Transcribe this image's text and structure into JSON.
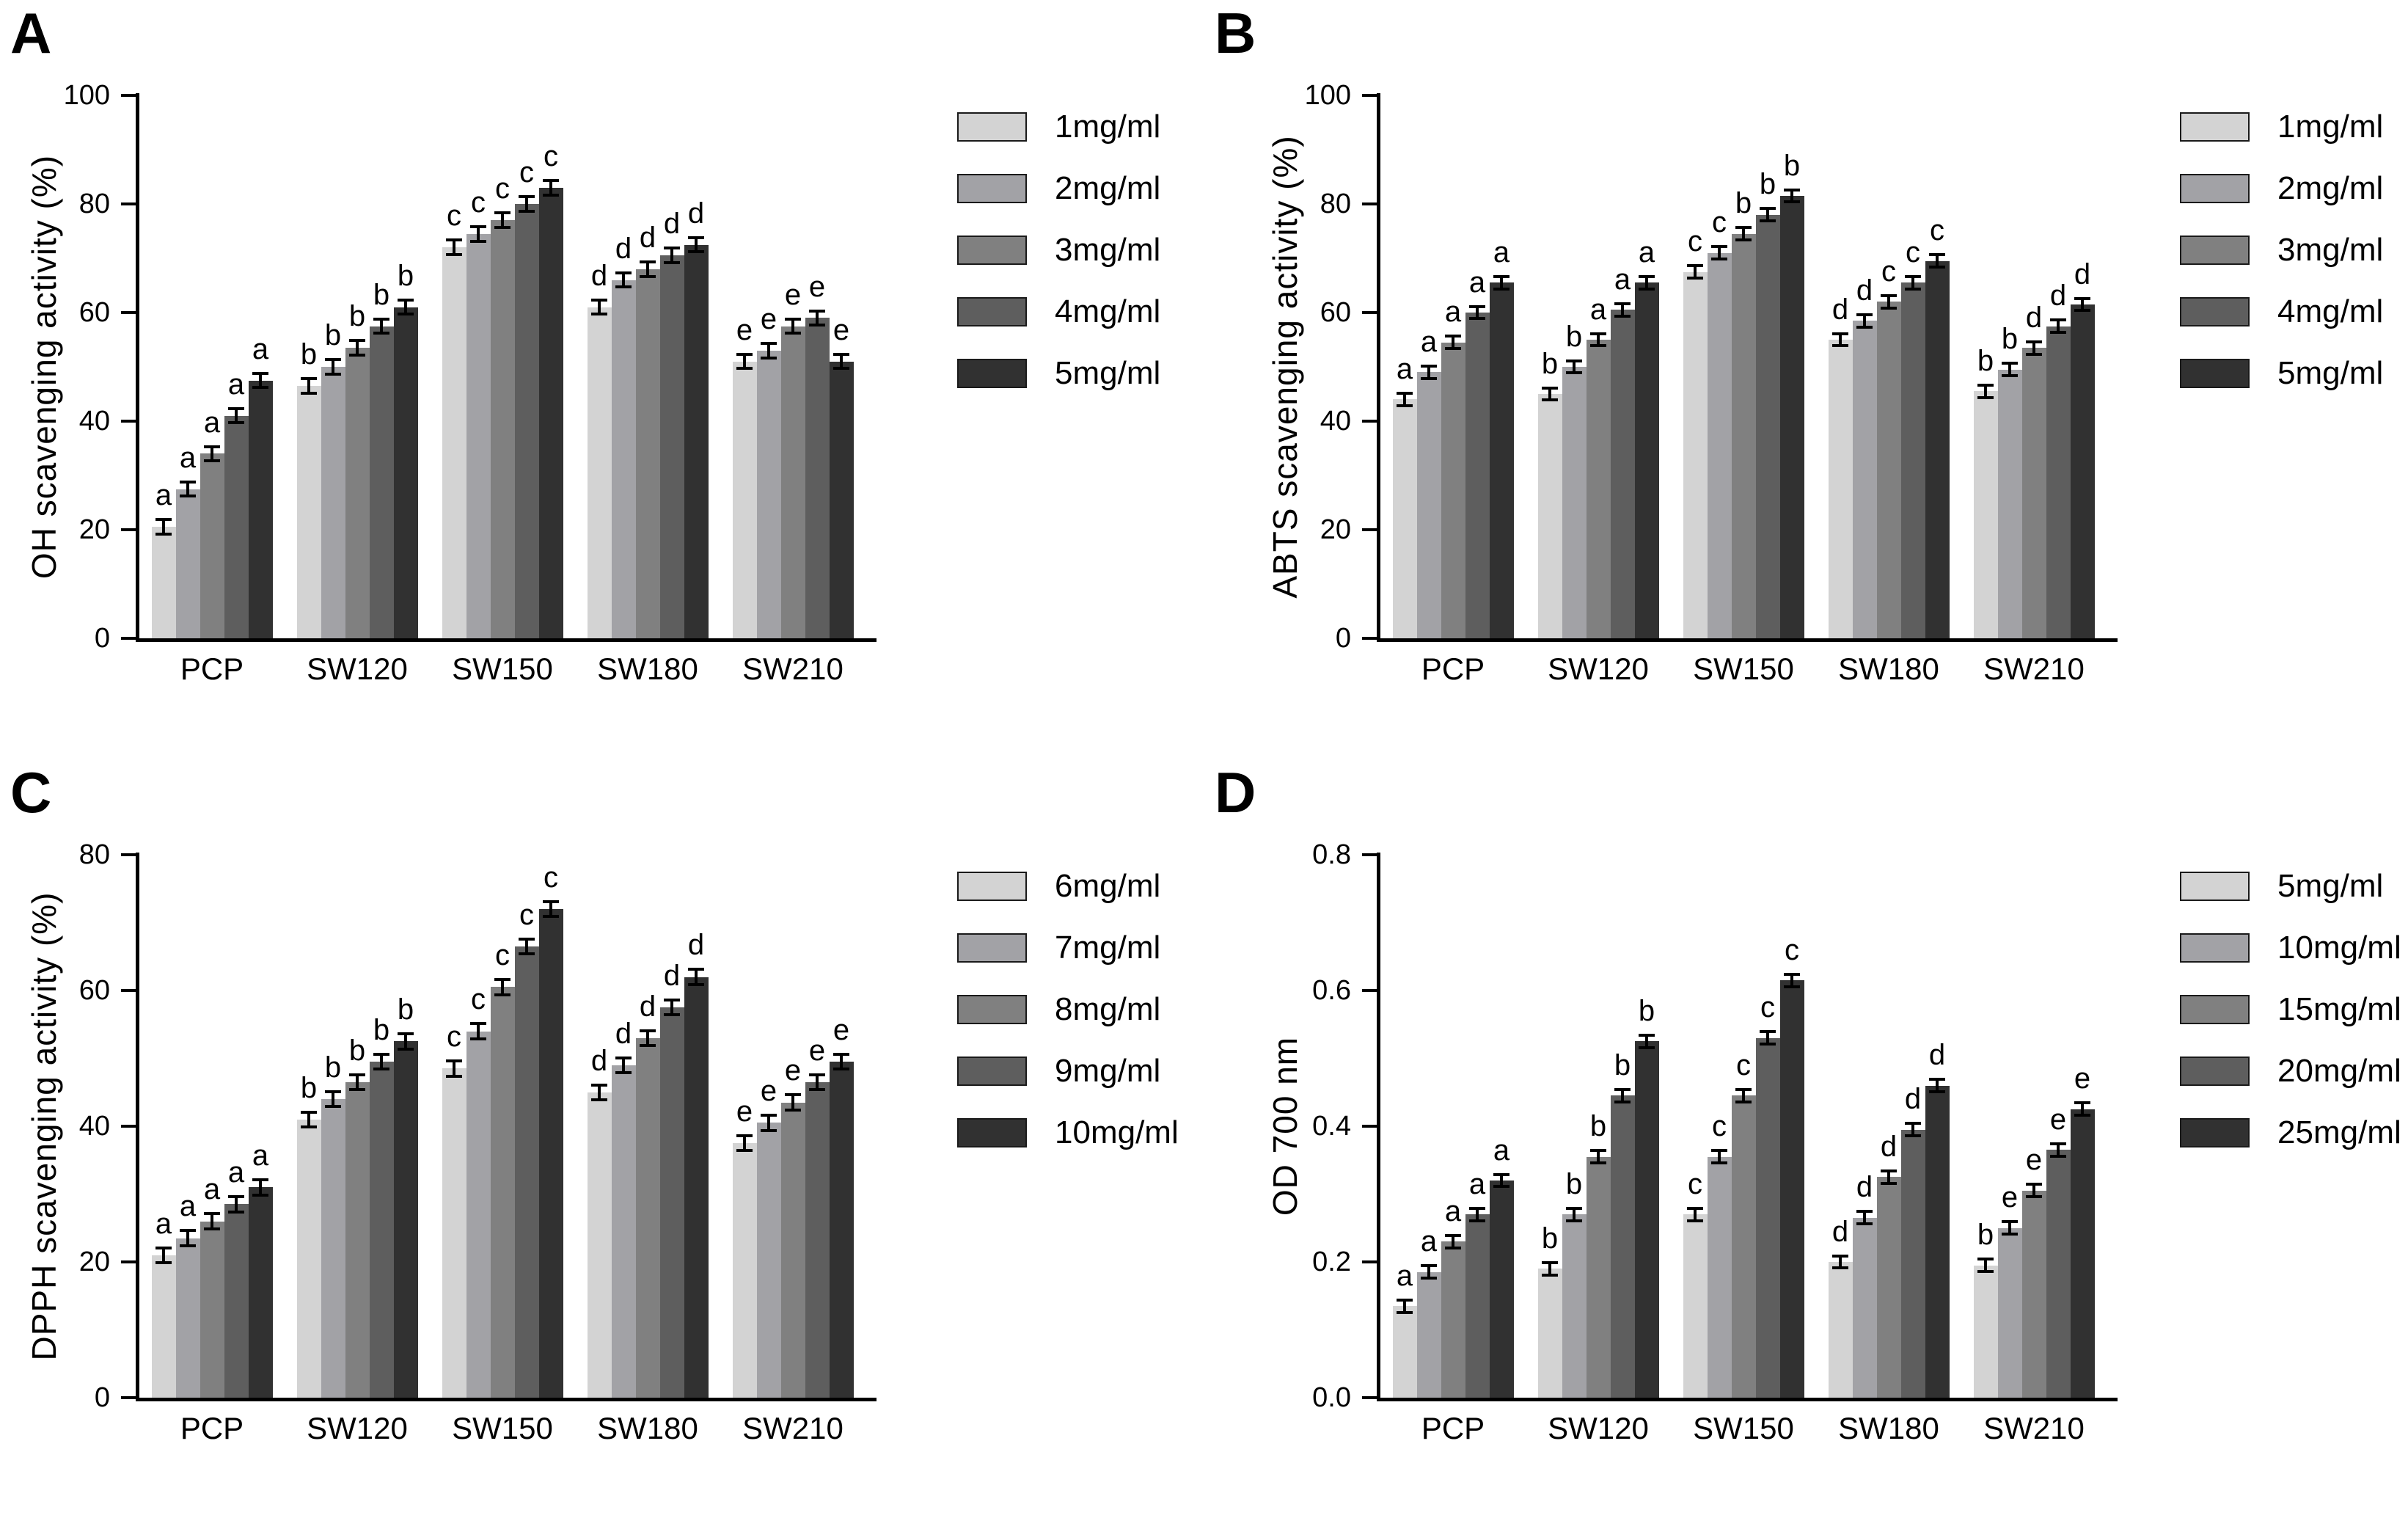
{
  "figure": {
    "background": "#ffffff"
  },
  "colors": {
    "bar_shades": [
      "#d3d3d3",
      "#a2a2a6",
      "#808080",
      "#5e5e5e",
      "#313131"
    ],
    "axis": "#000000",
    "text": "#000000",
    "error_bar": "#000000",
    "legend_swatch_border": "#1a1a1a"
  },
  "chart_data": [
    {
      "type": "bar",
      "panel_label": "A",
      "title": "",
      "xlabel": "",
      "ylabel": "OH scavenging activity (%)",
      "ylim": [
        0,
        100
      ],
      "yticks": [
        "0",
        "20",
        "40",
        "60",
        "80",
        "100"
      ],
      "categories": [
        "PCP",
        "SW120",
        "SW150",
        "SW180",
        "SW210"
      ],
      "legend_position": "right",
      "grid": false,
      "error_bar_size": 1.2,
      "series": [
        {
          "name": "1mg/ml",
          "values": [
            20.5,
            46.5,
            72,
            61,
            51
          ]
        },
        {
          "name": "2mg/ml",
          "values": [
            27.5,
            50,
            74.5,
            66,
            53
          ]
        },
        {
          "name": "3mg/ml",
          "values": [
            34,
            53.5,
            77,
            68,
            57.5
          ]
        },
        {
          "name": "4mg/ml",
          "values": [
            41,
            57.5,
            80,
            70.5,
            59
          ]
        },
        {
          "name": "5mg/ml",
          "values": [
            47.5,
            61,
            83,
            72.5,
            51
          ]
        }
      ],
      "sig_letters_by_group": [
        [
          "a",
          "a",
          "a",
          "a",
          "a"
        ],
        [
          "b",
          "b",
          "b",
          "b",
          "b"
        ],
        [
          "c",
          "c",
          "c",
          "c",
          "c"
        ],
        [
          "d",
          "d",
          "d",
          "d",
          "d"
        ],
        [
          "e",
          "e",
          "e",
          "e",
          "e"
        ]
      ]
    },
    {
      "type": "bar",
      "panel_label": "B",
      "title": "",
      "xlabel": "",
      "ylabel": "ABTS scavenging activity (%)",
      "ylim": [
        0,
        100
      ],
      "yticks": [
        "0",
        "20",
        "40",
        "60",
        "80",
        "100"
      ],
      "categories": [
        "PCP",
        "SW120",
        "SW150",
        "SW180",
        "SW210"
      ],
      "legend_position": "right",
      "grid": false,
      "error_bar_size": 1.0,
      "series": [
        {
          "name": "1mg/ml",
          "values": [
            44,
            45,
            67.5,
            55,
            45.5
          ]
        },
        {
          "name": "2mg/ml",
          "values": [
            49,
            50,
            71,
            58.5,
            49.5
          ]
        },
        {
          "name": "3mg/ml",
          "values": [
            54.5,
            55,
            74.5,
            62,
            53.5
          ]
        },
        {
          "name": "4mg/ml",
          "values": [
            60,
            60.5,
            78,
            65.5,
            57.5
          ]
        },
        {
          "name": "5mg/ml",
          "values": [
            65.5,
            65.5,
            81.5,
            69.5,
            61.5
          ]
        }
      ],
      "sig_letters_by_group": [
        [
          "a",
          "a",
          "a",
          "a",
          "a"
        ],
        [
          "b",
          "b",
          "a",
          "a",
          "a"
        ],
        [
          "c",
          "c",
          "b",
          "b",
          "b"
        ],
        [
          "d",
          "d",
          "c",
          "c",
          "c"
        ],
        [
          "b",
          "b",
          "d",
          "d",
          "d"
        ]
      ]
    },
    {
      "type": "bar",
      "panel_label": "C",
      "title": "",
      "xlabel": "",
      "ylabel": "DPPH scavenging activity (%)",
      "ylim": [
        0,
        80
      ],
      "yticks": [
        "0",
        "20",
        "40",
        "60",
        "80"
      ],
      "categories": [
        "PCP",
        "SW120",
        "SW150",
        "SW180",
        "SW210"
      ],
      "legend_position": "right",
      "grid": false,
      "error_bar_size": 1.0,
      "series": [
        {
          "name": "6mg/ml",
          "values": [
            21,
            41,
            48.5,
            45,
            37.5
          ]
        },
        {
          "name": "7mg/ml",
          "values": [
            23.5,
            44,
            54,
            49,
            40.5
          ]
        },
        {
          "name": "8mg/ml",
          "values": [
            26,
            46.5,
            60.5,
            53,
            43.5
          ]
        },
        {
          "name": "9mg/ml",
          "values": [
            28.5,
            49.5,
            66.5,
            57.5,
            46.5
          ]
        },
        {
          "name": "10mg/ml",
          "values": [
            31,
            52.5,
            72,
            62,
            49.5
          ]
        }
      ],
      "sig_letters_by_group": [
        [
          "a",
          "a",
          "a",
          "a",
          "a"
        ],
        [
          "b",
          "b",
          "b",
          "b",
          "b"
        ],
        [
          "c",
          "c",
          "c",
          "c",
          "c"
        ],
        [
          "d",
          "d",
          "d",
          "d",
          "d"
        ],
        [
          "e",
          "e",
          "e",
          "e",
          "e"
        ]
      ]
    },
    {
      "type": "bar",
      "panel_label": "D",
      "title": "",
      "xlabel": "",
      "ylabel": "OD 700 nm",
      "ylim": [
        0,
        0.8
      ],
      "yticks": [
        "0.0",
        "0.2",
        "0.4",
        "0.6",
        "0.8"
      ],
      "categories": [
        "PCP",
        "SW120",
        "SW150",
        "SW180",
        "SW210"
      ],
      "legend_position": "right",
      "grid": false,
      "error_bar_size": 0.008,
      "series": [
        {
          "name": "5mg/ml",
          "values": [
            0.135,
            0.19,
            0.27,
            0.2,
            0.195
          ]
        },
        {
          "name": "10mg/ml",
          "values": [
            0.185,
            0.27,
            0.355,
            0.265,
            0.25
          ]
        },
        {
          "name": "15mg/ml",
          "values": [
            0.23,
            0.355,
            0.445,
            0.325,
            0.305
          ]
        },
        {
          "name": "20mg/ml",
          "values": [
            0.27,
            0.445,
            0.53,
            0.395,
            0.365
          ]
        },
        {
          "name": "25mg/ml",
          "values": [
            0.32,
            0.525,
            0.615,
            0.46,
            0.425
          ]
        }
      ],
      "sig_letters_by_group": [
        [
          "a",
          "a",
          "a",
          "a",
          "a"
        ],
        [
          "b",
          "b",
          "b",
          "b",
          "b"
        ],
        [
          "c",
          "c",
          "c",
          "c",
          "c"
        ],
        [
          "d",
          "d",
          "d",
          "d",
          "d"
        ],
        [
          "b",
          "e",
          "e",
          "e",
          "e"
        ]
      ]
    }
  ]
}
